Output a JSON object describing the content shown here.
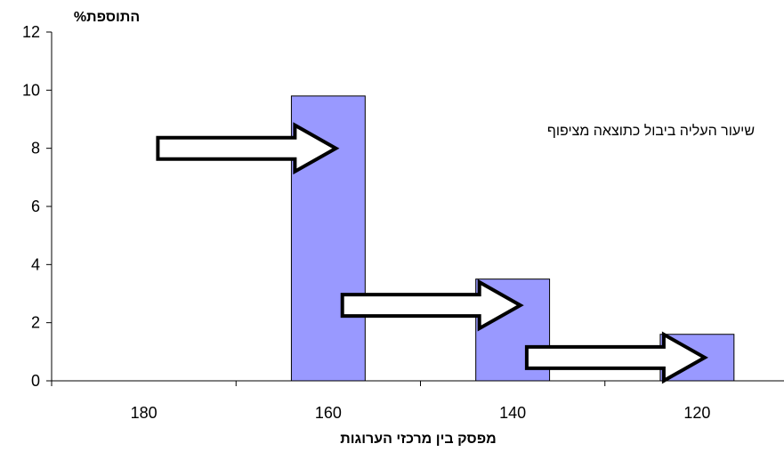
{
  "chart_data": {
    "type": "bar",
    "ylabel": "התוספת%",
    "xlabel": "מפסק בין מרכזי הערוגות",
    "annotation": "שיעור העליה ביבול כתוצאה מציפוף",
    "categories": [
      "180",
      "160",
      "140",
      "120"
    ],
    "values": [
      0,
      9.8,
      3.5,
      1.6
    ],
    "ylim": [
      0,
      12
    ],
    "yticks": [
      "0",
      "2",
      "4",
      "6",
      "8",
      "10",
      "12"
    ],
    "bar_color": "#9999ff",
    "arrows_pointing_to": [
      "160",
      "140",
      "120"
    ],
    "grid": false,
    "legend": "none"
  }
}
